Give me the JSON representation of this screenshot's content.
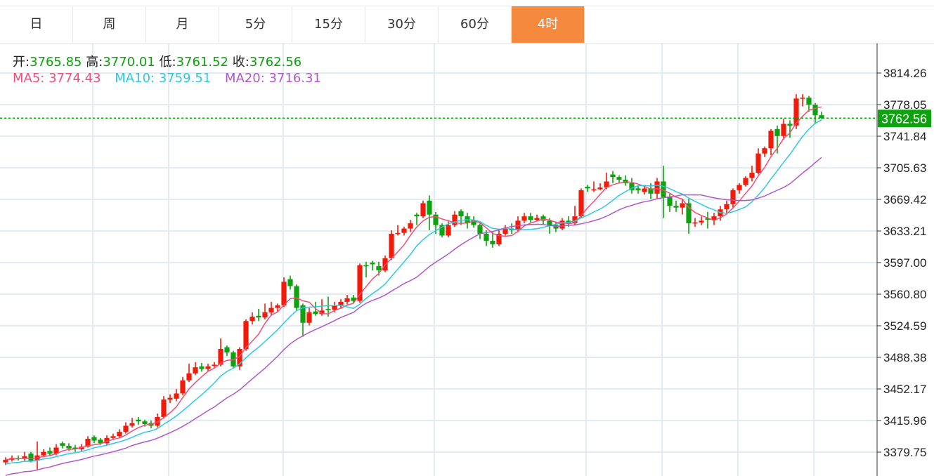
{
  "tabs": [
    {
      "label": "日",
      "active": false
    },
    {
      "label": "周",
      "active": false
    },
    {
      "label": "月",
      "active": false
    },
    {
      "label": "5分",
      "active": false
    },
    {
      "label": "15分",
      "active": false
    },
    {
      "label": "30分",
      "active": false
    },
    {
      "label": "60分",
      "active": false
    },
    {
      "label": "4时",
      "active": true
    }
  ],
  "ohlc": {
    "open_label": "开:",
    "open": "3765.85",
    "high_label": "高:",
    "high": "3770.01",
    "low_label": "低:",
    "low": "3761.52",
    "close_label": "收:",
    "close": "3762.56"
  },
  "ma": {
    "ma5_label": "MA5:",
    "ma5": "3774.43",
    "ma10_label": "MA10:",
    "ma10": "3759.51",
    "ma20_label": "MA20:",
    "ma20": "3716.31"
  },
  "colors": {
    "up": "#f21b0a",
    "down": "#0ea20e",
    "ma5": "#ef4f78",
    "ma10": "#2ec8e0",
    "ma20": "#b157c8",
    "active_tab": "#f5893d",
    "grid": "#e3ebf2"
  },
  "chart_data": {
    "type": "candlestick",
    "current_price": "3762.56",
    "ylim": [
      3379.75,
      3814.26
    ],
    "y_ticks": [
      "3814.26",
      "3778.05",
      "3741.84",
      "3705.63",
      "3669.42",
      "3633.21",
      "3597.00",
      "3560.80",
      "3524.59",
      "3488.38",
      "3452.17",
      "3415.96",
      "3379.75"
    ],
    "grid": true,
    "candles_ohlc": [
      [
        3368,
        3374,
        3365,
        3371
      ],
      [
        3371,
        3376,
        3369,
        3373
      ],
      [
        3373,
        3376,
        3370,
        3372
      ],
      [
        3372,
        3380,
        3370,
        3375
      ],
      [
        3378,
        3380,
        3368,
        3370
      ],
      [
        3370,
        3392,
        3360,
        3376
      ],
      [
        3376,
        3383,
        3374,
        3380
      ],
      [
        3381,
        3385,
        3375,
        3378
      ],
      [
        3378,
        3389,
        3376,
        3385
      ],
      [
        3390,
        3392,
        3384,
        3387
      ],
      [
        3387,
        3390,
        3381,
        3384
      ],
      [
        3385,
        3388,
        3380,
        3383
      ],
      [
        3383,
        3389,
        3381,
        3386
      ],
      [
        3386,
        3398,
        3385,
        3395
      ],
      [
        3397,
        3399,
        3390,
        3393
      ],
      [
        3394,
        3396,
        3388,
        3390
      ],
      [
        3390,
        3399,
        3388,
        3396
      ],
      [
        3396,
        3401,
        3394,
        3398
      ],
      [
        3398,
        3406,
        3396,
        3403
      ],
      [
        3403,
        3414,
        3401,
        3410
      ],
      [
        3410,
        3419,
        3408,
        3413
      ],
      [
        3417,
        3420,
        3411,
        3415
      ],
      [
        3415,
        3417,
        3409,
        3412
      ],
      [
        3413,
        3416,
        3407,
        3410
      ],
      [
        3410,
        3424,
        3408,
        3420
      ],
      [
        3420,
        3444,
        3418,
        3440
      ],
      [
        3440,
        3446,
        3436,
        3442
      ],
      [
        3441,
        3452,
        3438,
        3447
      ],
      [
        3447,
        3466,
        3445,
        3462
      ],
      [
        3462,
        3481,
        3460,
        3470
      ],
      [
        3470,
        3483,
        3468,
        3477
      ],
      [
        3478,
        3482,
        3472,
        3475
      ],
      [
        3475,
        3481,
        3473,
        3478
      ],
      [
        3479,
        3483,
        3476,
        3480
      ],
      [
        3480,
        3510,
        3478,
        3498
      ],
      [
        3500,
        3502,
        3490,
        3494
      ],
      [
        3494,
        3496,
        3476,
        3478
      ],
      [
        3478,
        3500,
        3474,
        3498
      ],
      [
        3498,
        3532,
        3496,
        3530
      ],
      [
        3530,
        3540,
        3526,
        3535
      ],
      [
        3536,
        3544,
        3530,
        3534
      ],
      [
        3534,
        3550,
        3532,
        3540
      ],
      [
        3540,
        3552,
        3536,
        3545
      ],
      [
        3545,
        3550,
        3541,
        3548
      ],
      [
        3548,
        3580,
        3546,
        3575
      ],
      [
        3578,
        3582,
        3566,
        3570
      ],
      [
        3570,
        3572,
        3542,
        3545
      ],
      [
        3548,
        3550,
        3512,
        3528
      ],
      [
        3528,
        3545,
        3525,
        3540
      ],
      [
        3541,
        3552,
        3536,
        3538
      ],
      [
        3538,
        3555,
        3536,
        3542
      ],
      [
        3544,
        3558,
        3535,
        3543
      ],
      [
        3543,
        3552,
        3540,
        3548
      ],
      [
        3548,
        3555,
        3544,
        3552
      ],
      [
        3552,
        3560,
        3549,
        3556
      ],
      [
        3557,
        3560,
        3550,
        3553
      ],
      [
        3553,
        3596,
        3551,
        3594
      ],
      [
        3594,
        3598,
        3580,
        3593
      ],
      [
        3597,
        3599,
        3588,
        3595
      ],
      [
        3593,
        3598,
        3582,
        3588
      ],
      [
        3588,
        3605,
        3586,
        3602
      ],
      [
        3602,
        3634,
        3600,
        3630
      ],
      [
        3630,
        3640,
        3628,
        3631
      ],
      [
        3631,
        3638,
        3628,
        3636
      ],
      [
        3636,
        3646,
        3632,
        3642
      ],
      [
        3652,
        3654,
        3640,
        3650
      ],
      [
        3650,
        3668,
        3648,
        3665
      ],
      [
        3668,
        3674,
        3634,
        3652
      ],
      [
        3652,
        3655,
        3630,
        3640
      ],
      [
        3640,
        3642,
        3626,
        3628
      ],
      [
        3628,
        3644,
        3626,
        3640
      ],
      [
        3640,
        3656,
        3638,
        3652
      ],
      [
        3656,
        3658,
        3640,
        3650
      ],
      [
        3650,
        3654,
        3636,
        3642
      ],
      [
        3646,
        3650,
        3637,
        3640
      ],
      [
        3640,
        3642,
        3624,
        3630
      ],
      [
        3630,
        3634,
        3616,
        3622
      ],
      [
        3622,
        3632,
        3614,
        3618
      ],
      [
        3618,
        3634,
        3616,
        3630
      ],
      [
        3630,
        3640,
        3628,
        3636
      ],
      [
        3636,
        3642,
        3630,
        3634
      ],
      [
        3634,
        3650,
        3632,
        3645
      ],
      [
        3645,
        3654,
        3642,
        3650
      ],
      [
        3650,
        3654,
        3643,
        3646
      ],
      [
        3646,
        3652,
        3644,
        3648
      ],
      [
        3650,
        3652,
        3640,
        3645
      ],
      [
        3645,
        3648,
        3630,
        3640
      ],
      [
        3640,
        3644,
        3632,
        3636
      ],
      [
        3636,
        3648,
        3634,
        3645
      ],
      [
        3645,
        3650,
        3638,
        3642
      ],
      [
        3642,
        3662,
        3640,
        3650
      ],
      [
        3650,
        3682,
        3648,
        3680
      ],
      [
        3684,
        3686,
        3678,
        3682
      ],
      [
        3681,
        3690,
        3678,
        3681
      ],
      [
        3681,
        3688,
        3680,
        3683
      ],
      [
        3683,
        3700,
        3681,
        3690
      ],
      [
        3698,
        3702,
        3688,
        3695
      ],
      [
        3695,
        3697,
        3688,
        3692
      ],
      [
        3692,
        3697,
        3685,
        3688
      ],
      [
        3688,
        3694,
        3676,
        3680
      ],
      [
        3682,
        3685,
        3676,
        3680
      ],
      [
        3678,
        3686,
        3675,
        3682
      ],
      [
        3682,
        3688,
        3670,
        3676
      ],
      [
        3676,
        3694,
        3670,
        3690
      ],
      [
        3690,
        3708,
        3648,
        3672
      ],
      [
        3672,
        3676,
        3655,
        3662
      ],
      [
        3662,
        3668,
        3655,
        3660
      ],
      [
        3660,
        3670,
        3652,
        3665
      ],
      [
        3665,
        3670,
        3630,
        3642
      ],
      [
        3642,
        3648,
        3638,
        3643
      ],
      [
        3643,
        3650,
        3640,
        3645
      ],
      [
        3648,
        3655,
        3636,
        3646
      ],
      [
        3646,
        3654,
        3640,
        3650
      ],
      [
        3650,
        3662,
        3645,
        3658
      ],
      [
        3658,
        3668,
        3652,
        3664
      ],
      [
        3664,
        3682,
        3660,
        3680
      ],
      [
        3680,
        3688,
        3676,
        3686
      ],
      [
        3686,
        3696,
        3684,
        3694
      ],
      [
        3694,
        3708,
        3690,
        3700
      ],
      [
        3700,
        3728,
        3698,
        3722
      ],
      [
        3722,
        3730,
        3718,
        3728
      ],
      [
        3728,
        3750,
        3720,
        3748
      ],
      [
        3750,
        3754,
        3722,
        3742
      ],
      [
        3742,
        3762,
        3738,
        3756
      ],
      [
        3756,
        3760,
        3740,
        3754
      ],
      [
        3754,
        3790,
        3750,
        3785
      ],
      [
        3786,
        3790,
        3776,
        3786
      ],
      [
        3786,
        3788,
        3770,
        3778
      ],
      [
        3778,
        3780,
        3756,
        3765.85
      ],
      [
        3765.85,
        3770.01,
        3761.52,
        3762.56
      ]
    ]
  }
}
